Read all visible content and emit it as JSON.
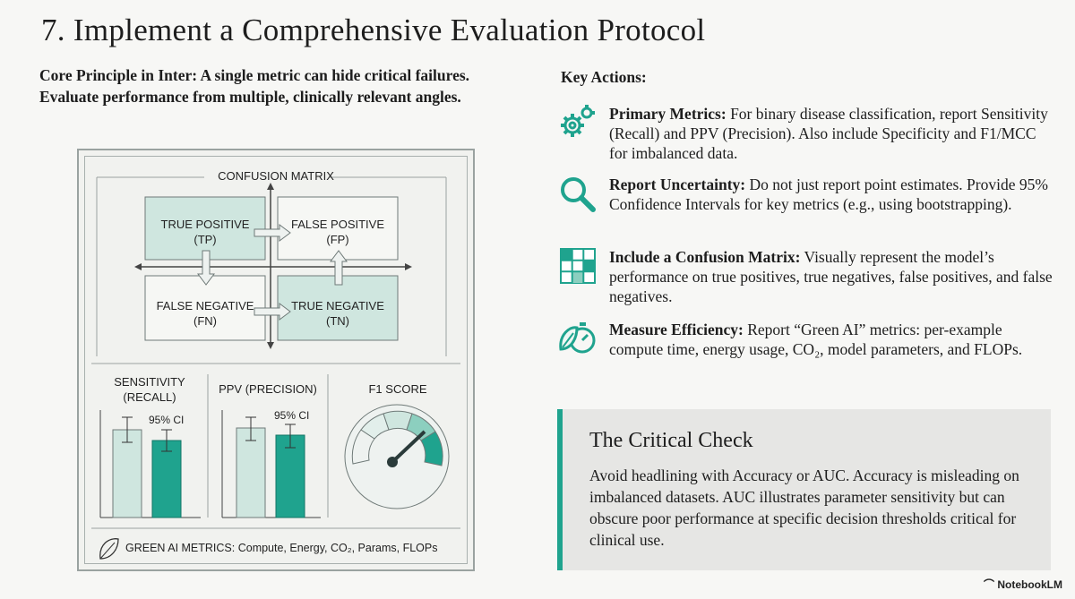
{
  "title": "7. Implement a Comprehensive Evaluation Protocol",
  "principle": "Core Principle in Inter: A single metric can hide critical failures. Evaluate performance from multiple, clinically relevant angles.",
  "key_actions_heading": "Key Actions:",
  "actions": [
    {
      "icon": "gears-icon",
      "bold": "Primary Metrics:",
      "text": " For binary disease classification, report Sensitivity (Recall) and PPV (Precision). Also include Specificity and F1/MCC for imbalanced data."
    },
    {
      "icon": "magnifier-icon",
      "bold": "Report Uncertainty:",
      "text": " Do not just report point estimates. Provide 95% Confidence Intervals for key metrics (e.g., using bootstrapping)."
    },
    {
      "icon": "grid-icon",
      "bold": "Include a Confusion Matrix:",
      "text": " Visually represent the model’s performance on true positives, true negatives, false positives, and false negatives."
    },
    {
      "icon": "leaf-stopwatch-icon",
      "bold": "Measure Efficiency:",
      "text": " Report “Green AI” metrics: per-example compute time, energy usage, CO₂, model parameters, and FLOPs."
    }
  ],
  "matrix": {
    "label": "CONFUSION MATRIX",
    "tp": [
      "TRUE POSITIVE",
      "(TP)"
    ],
    "fp": [
      "FALSE POSITIVE",
      "(FP)"
    ],
    "fn": [
      "FALSE NEGATIVE",
      "(FN)"
    ],
    "tn": [
      "TRUE NEGATIVE",
      "(TN)"
    ]
  },
  "metrics": {
    "sensitivity": [
      "SENSITIVITY",
      "(RECALL)"
    ],
    "ppv": "PPV (PRECISION)",
    "f1": "F1 SCORE",
    "ci": "95% CI"
  },
  "green_ai": "GREEN AI METRICS: Compute, Energy, CO₂, Params, FLOPs",
  "critical_check": {
    "title": "The Critical Check",
    "body": "Avoid headlining with Accuracy or AUC. Accuracy is misleading on imbalanced datasets. AUC illustrates parameter sensitivity but can obscure poor performance at specific decision thresholds critical for clinical use."
  },
  "brand": "NotebookLM",
  "colors": {
    "teal": "#1fa38e",
    "light_teal": "#cfe6df",
    "pale": "#e2efeb"
  }
}
